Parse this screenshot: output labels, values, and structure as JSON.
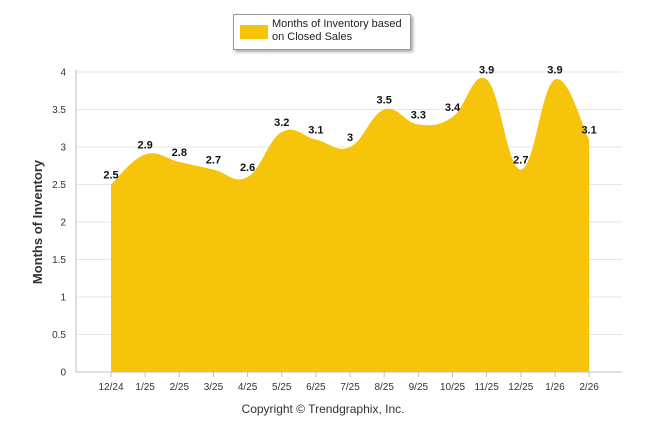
{
  "chart_data": {
    "type": "area",
    "categories": [
      "12/24",
      "1/25",
      "2/25",
      "3/25",
      "4/25",
      "5/25",
      "6/25",
      "7/25",
      "8/25",
      "9/25",
      "10/25",
      "11/25",
      "12/25",
      "1/26",
      "2/26"
    ],
    "series": [
      {
        "name": "Months of Inventory based on Closed Sales",
        "values": [
          2.5,
          2.9,
          2.8,
          2.7,
          2.6,
          3.2,
          3.1,
          3,
          3.5,
          3.3,
          3.4,
          3.9,
          2.7,
          3.9,
          3.1
        ],
        "color": "#f7c40c"
      }
    ],
    "data_labels": [
      "2.5",
      "2.9",
      "2.8",
      "2.7",
      "2.6",
      "3.2",
      "3.1",
      "3",
      "3.5",
      "3.3",
      "3.4",
      "3.9",
      "2.7",
      "3.9",
      "3.1"
    ],
    "ylabel": "Months of Inventory",
    "xlabel": "",
    "ylim": [
      0,
      4
    ],
    "yticks": [
      "0",
      "0.5",
      "1",
      "1.5",
      "2",
      "2.5",
      "3",
      "3.5",
      "4"
    ],
    "grid": true,
    "legend_position": "top-center"
  },
  "footer": {
    "copyright": "Copyright © Trendgraphix, Inc."
  },
  "colors": {
    "area_fill": "#f7c40c",
    "grid": "#e6e6e6",
    "axis": "#c0c0c0"
  }
}
